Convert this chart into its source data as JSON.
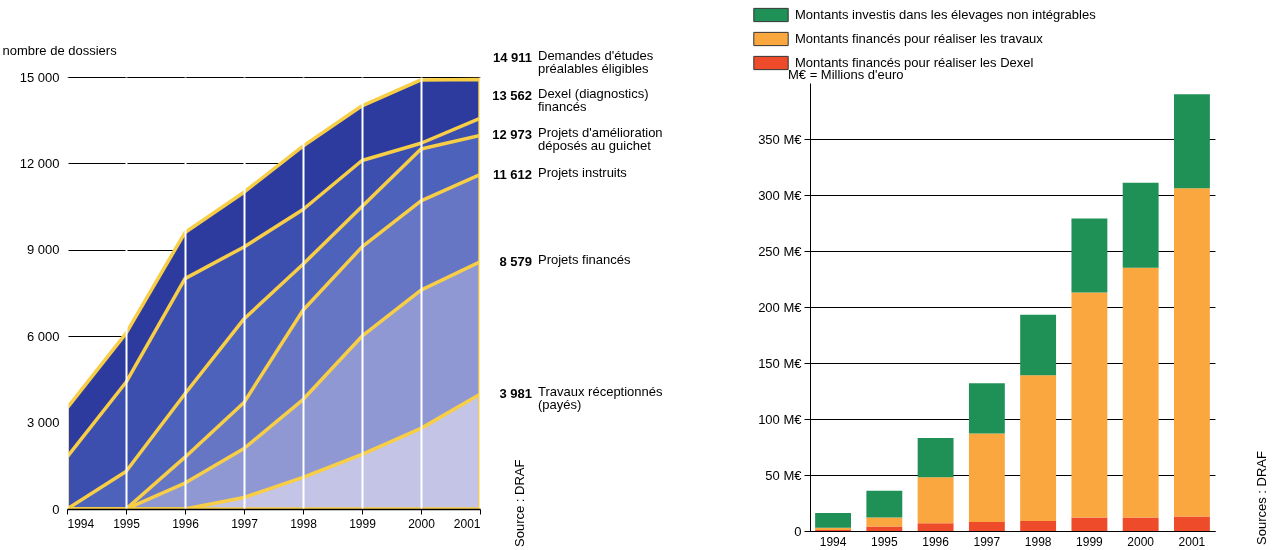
{
  "chart_data": [
    {
      "type": "area",
      "ylabel": "nombre de dossiers",
      "x": [
        1994,
        1995,
        1996,
        1997,
        1998,
        1999,
        2000,
        2001
      ],
      "xlim": [
        1994,
        2001
      ],
      "xticks": [
        1994,
        1995,
        1996,
        1997,
        1998,
        1999,
        2000,
        2001
      ],
      "ylim": [
        0,
        15000
      ],
      "yticks": [
        {
          "value": 0,
          "label": "0"
        },
        {
          "value": 3000,
          "label": "3 000"
        },
        {
          "value": 6000,
          "label": "6 000"
        },
        {
          "value": 9000,
          "label": "9 000"
        },
        {
          "value": 12000,
          "label": "12 000"
        },
        {
          "value": 15000,
          "label": "15 000"
        }
      ],
      "grid": true,
      "series": [
        {
          "name": "Demandes d'études\npréalables éligibles",
          "color": "#2d3b9e",
          "values": [
            3500,
            6100,
            9600,
            11000,
            12600,
            14000,
            14900,
            14911
          ],
          "value_labels": [
            null,
            null,
            null,
            null,
            null,
            null,
            null,
            "14 911"
          ]
        },
        {
          "name": "Dexel (diagnostics)\nfinancés",
          "color": "#3d4fae",
          "values": [
            1800,
            4400,
            8000,
            9100,
            10400,
            12100,
            12700,
            13562
          ],
          "value_labels": [
            null,
            null,
            null,
            null,
            null,
            null,
            null,
            "13 562"
          ]
        },
        {
          "name": "Projets d'amélioration\ndéposés au guichet",
          "color": "#4d62ba",
          "values": [
            0,
            1300,
            4000,
            6600,
            8500,
            10500,
            12500,
            12973
          ],
          "value_labels": [
            null,
            null,
            null,
            null,
            null,
            null,
            null,
            "12 973"
          ]
        },
        {
          "name": "Projets instruits",
          "color": "#6675c4",
          "values": [
            0,
            0,
            1800,
            3700,
            6900,
            9100,
            10700,
            11612
          ],
          "value_labels": [
            null,
            null,
            null,
            null,
            null,
            null,
            null,
            "11 612"
          ]
        },
        {
          "name": "Projets financés",
          "color": "#8f98d3",
          "values": [
            0,
            0,
            900,
            2100,
            3800,
            6000,
            7600,
            8579
          ],
          "value_labels": [
            null,
            null,
            null,
            null,
            null,
            null,
            null,
            "8 579"
          ]
        },
        {
          "name": "Travaux réceptionnés\n(payés)",
          "color": "#c4c4e6",
          "values": [
            0,
            0,
            0,
            400,
            1100,
            1900,
            2800,
            3981
          ],
          "value_labels": [
            null,
            null,
            null,
            null,
            null,
            null,
            null,
            "3 981"
          ]
        }
      ],
      "annotations": [
        "Source : DRAF"
      ]
    },
    {
      "type": "bar",
      "stacked": true,
      "categories": [
        "1994",
        "1995",
        "1996",
        "1997",
        "1998",
        "1999",
        "2000",
        "2001"
      ],
      "ylim": [
        0,
        400
      ],
      "yticks": [
        {
          "value": 0,
          "label": "0"
        },
        {
          "value": 50,
          "label": "50 M€"
        },
        {
          "value": 100,
          "label": "100 M€"
        },
        {
          "value": 150,
          "label": "150 M€"
        },
        {
          "value": 200,
          "label": "200 M€"
        },
        {
          "value": 250,
          "label": "250 M€"
        },
        {
          "value": 300,
          "label": "300 M€"
        },
        {
          "value": 350,
          "label": "350 M€"
        }
      ],
      "grid": "y",
      "legend": "top left",
      "series": [
        {
          "name": "Montants financés pour réaliser les Dexel",
          "color": "#ee4b2b",
          "values": [
            1,
            4,
            7,
            8,
            9,
            12,
            12,
            13
          ]
        },
        {
          "name": "Montants financés pour réaliser les travaux",
          "color": "#f9a73e",
          "values": [
            2,
            8,
            41,
            79,
            130,
            201,
            223,
            293
          ]
        },
        {
          "name": "Montants investis dans les élevages non intégrables",
          "color": "#1f9156",
          "values": [
            13,
            24,
            35,
            45,
            54,
            66,
            76,
            84
          ]
        }
      ],
      "annotations": [
        "M€ = Millions d'euro",
        "Sources : DRAF"
      ]
    }
  ]
}
